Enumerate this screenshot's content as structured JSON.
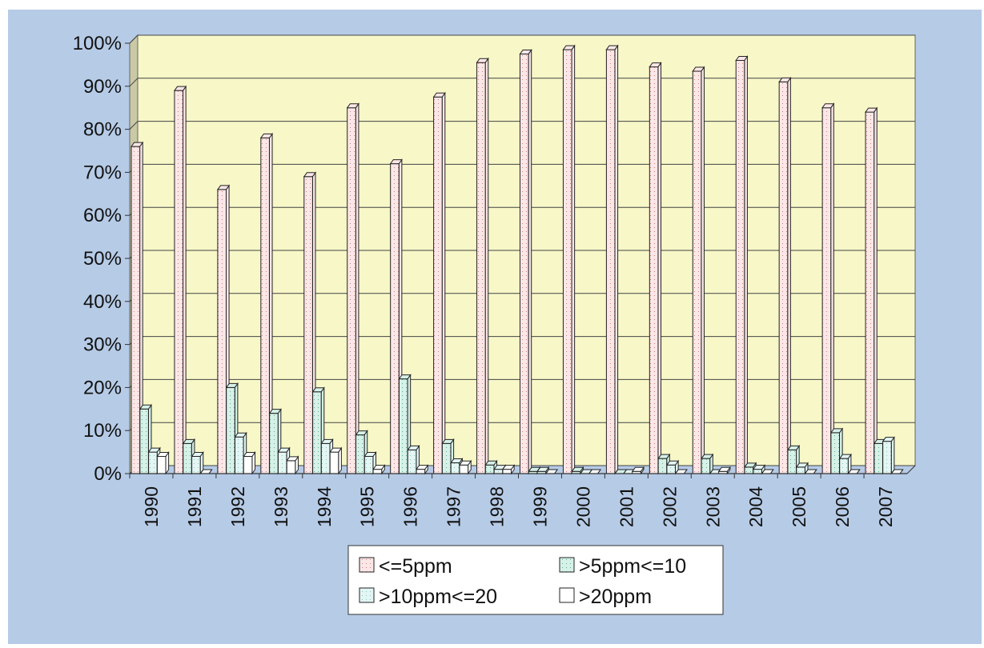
{
  "colors": {
    "frame_bg": "#b6cbe6",
    "plot_bg": "#f7f7c8",
    "series_fill": [
      "#fbe7e7",
      "#d5f1e8",
      "#e3f6f4",
      "#ffffff"
    ],
    "series_dots": [
      "#d06a6a",
      "#4f9a7e",
      "#7ab8b0",
      "#ffffff"
    ],
    "bar_stroke": "#222222",
    "grid": "#444444"
  },
  "chart_data": {
    "type": "bar",
    "style": "3d-clustered",
    "categories": [
      "1990",
      "1991",
      "1992",
      "1993",
      "1994",
      "1995",
      "1996",
      "1997",
      "1998",
      "1999",
      "2000",
      "2001",
      "2002",
      "2003",
      "2004",
      "2005",
      "2006",
      "2007"
    ],
    "series": [
      {
        "name": "<=5ppm",
        "values": [
          0.76,
          0.89,
          0.66,
          0.78,
          0.69,
          0.85,
          0.72,
          0.875,
          0.955,
          0.975,
          0.985,
          0.985,
          0.945,
          0.935,
          0.96,
          0.91,
          0.85,
          0.84
        ]
      },
      {
        "name": ">5ppm<=10",
        "values": [
          0.15,
          0.07,
          0.2,
          0.14,
          0.19,
          0.09,
          0.22,
          0.07,
          0.02,
          0.005,
          0.005,
          0.0,
          0.035,
          0.035,
          0.015,
          0.055,
          0.095,
          0.07
        ]
      },
      {
        "name": ">10ppm<=20",
        "values": [
          0.05,
          0.04,
          0.085,
          0.05,
          0.07,
          0.04,
          0.055,
          0.025,
          0.01,
          0.005,
          0.0,
          0.0,
          0.02,
          0.0,
          0.01,
          0.015,
          0.035,
          0.075
        ]
      },
      {
        "name": ">20ppm",
        "values": [
          0.04,
          0.0,
          0.04,
          0.03,
          0.05,
          0.01,
          0.01,
          0.02,
          0.01,
          0.0,
          0.0,
          0.005,
          0.0,
          0.005,
          0.0,
          0.0,
          0.0,
          0.0
        ]
      }
    ],
    "y_ticks": [
      "0%",
      "10%",
      "20%",
      "30%",
      "40%",
      "50%",
      "60%",
      "70%",
      "80%",
      "90%",
      "100%"
    ],
    "ylim": [
      0,
      1
    ],
    "grid": true,
    "legend_position": "bottom",
    "title": "",
    "xlabel": "",
    "ylabel": ""
  }
}
